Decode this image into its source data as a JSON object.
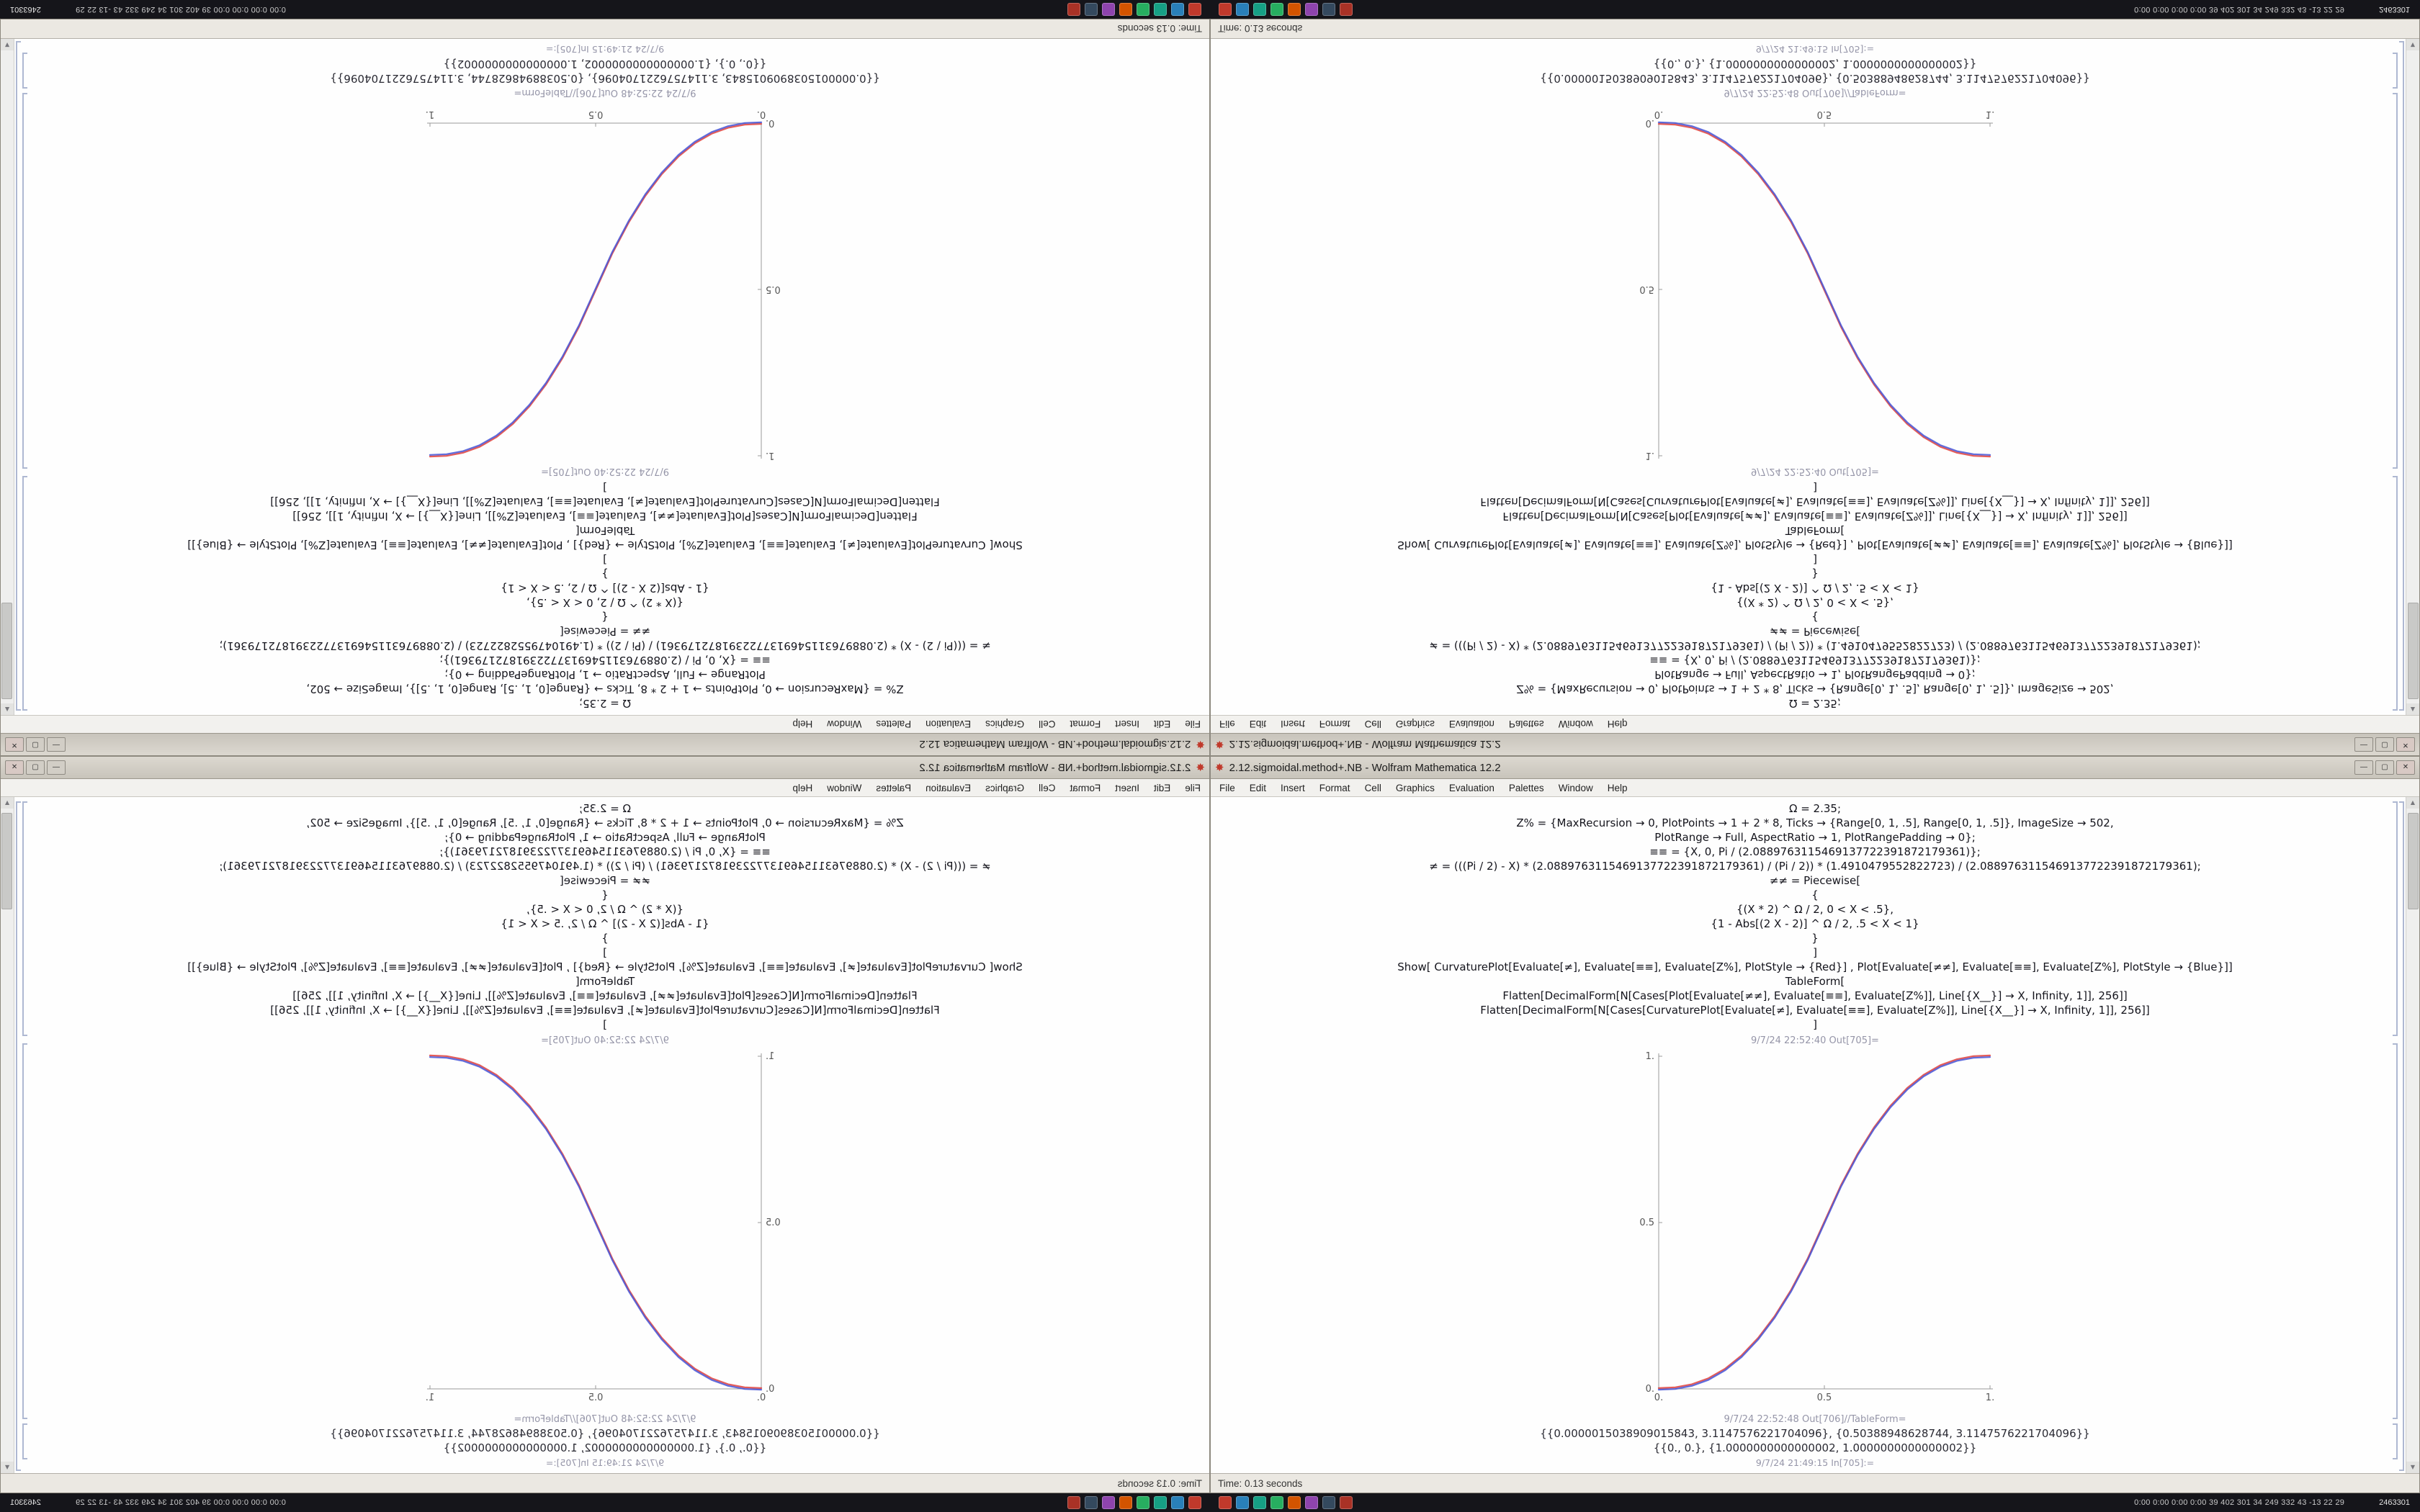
{
  "window": {
    "title": "2.12.sigmoidal.method+.NB - Wolfram Mathematica 12.2",
    "app_icon_glyph": "✸",
    "controls": {
      "minimize": "—",
      "maximize": "▢",
      "close": "✕"
    },
    "menu": [
      "File",
      "Edit",
      "Insert",
      "Format",
      "Cell",
      "Graphics",
      "Evaluation",
      "Palettes",
      "Window",
      "Help"
    ],
    "cells": {
      "code_lines": [
        "Ω = 2.35;",
        "Z% = {MaxRecursion → 0, PlotPoints → 1 + 2 * 8, Ticks → {Range[0, 1, .5], Range[0, 1, .5]}, ImageSize → 502,",
        "PlotRange → Full, AspectRatio → 1, PlotRangePadding → 0};",
        "≡≡ = {X, 0, Pi / (2.0889763115469137722391872179361)};",
        "≠ = (((Pi / 2) - X) * (2.0889763115469137722391872179361) / (Pi / 2)) * (1.4910479552822723) / (2.0889763115469137722391872179361);",
        "≠≠ = Piecewise[",
        "{",
        "{(X * 2) ^ Ω / 2, 0 < X < .5},",
        "{1 - Abs[(2 X - 2)] ^ Ω / 2, .5 < X < 1}",
        "}",
        "]",
        "Show[ CurvaturePlot[Evaluate[≠], Evaluate[≡≡], Evaluate[Z%], PlotStyle → {Red}] , Plot[Evaluate[≠≠], Evaluate[≡≡], Evaluate[Z%], PlotStyle → {Blue}]]",
        "TableForm[",
        "Flatten[DecimalForm[N[Cases[Plot[Evaluate[≠≠], Evaluate[≡≡], Evaluate[Z%]], Line[{X__}] → X, Infinity, 1]], 256]]",
        "Flatten[DecimalForm[N[Cases[CurvaturePlot[Evaluate[≠], Evaluate[≡≡], Evaluate[Z%]], Line[{X__}] → X, Infinity, 1]], 256]]",
        "]"
      ],
      "out1_label": "9/7/24 22:52:40 Out[705]=",
      "out2_label": "9/7/24 22:52:48 Out[706]//TableForm=",
      "table_rows": [
        "{{0.0000015038909015843, 3.1147576221704096}, {0.50388948628744, 3.1147576221704096}}",
        "{{0., 0.}, {1.0000000000000002, 1.0000000000000002}}"
      ],
      "next_in_label": "9/7/24 21:49:15 In[705]:="
    },
    "status_bar": {
      "left": "Time: 0.13 seconds"
    }
  },
  "taskbar": {
    "app_icons": [
      {
        "name": "taskbar-app-1",
        "color": "#c0392b"
      },
      {
        "name": "taskbar-app-2",
        "color": "#2980b9"
      },
      {
        "name": "taskbar-app-3",
        "color": "#16a085"
      },
      {
        "name": "taskbar-app-4",
        "color": "#27ae60"
      },
      {
        "name": "taskbar-app-5",
        "color": "#d35400"
      },
      {
        "name": "taskbar-app-6",
        "color": "#8e44ad"
      },
      {
        "name": "taskbar-app-7",
        "color": "#34495e"
      },
      {
        "name": "taskbar-app-8",
        "color": "#a93226"
      }
    ],
    "stats": "0:00 0:00 0:00 0:00 39 402 301 34 249 332 43 -13 22 29",
    "clock": "2463301"
  },
  "chart_data": {
    "type": "line",
    "title": "",
    "xlabel": "",
    "ylabel": "",
    "xlim": [
      0,
      1
    ],
    "ylim": [
      0,
      1
    ],
    "xticks": [
      0,
      0.5,
      1
    ],
    "yticks": [
      0,
      0.5,
      1
    ],
    "tick_labels": [
      "0.",
      "0.5",
      "1."
    ],
    "grid": false,
    "frame": false,
    "legend": "none",
    "image_size": 502,
    "x": [
      0,
      0.05,
      0.1,
      0.15,
      0.2,
      0.25,
      0.3,
      0.35,
      0.4,
      0.45,
      0.5,
      0.55,
      0.6,
      0.65,
      0.7,
      0.75,
      0.8,
      0.85,
      0.9,
      0.95,
      1
    ],
    "series": [
      {
        "name": "CurvaturePlot[≠] (Red)",
        "color": "#e0413c",
        "values": [
          0,
          0.0022,
          0.0114,
          0.0295,
          0.058,
          0.098,
          0.1506,
          0.2162,
          0.2959,
          0.3903,
          0.5,
          0.6097,
          0.7041,
          0.7838,
          0.8494,
          0.902,
          0.942,
          0.9705,
          0.9886,
          0.9978,
          1
        ]
      },
      {
        "name": "Plot[≠≠] (Blue)",
        "color": "#4553d6",
        "values": [
          0,
          0.0022,
          0.0114,
          0.0295,
          0.058,
          0.098,
          0.1506,
          0.2162,
          0.2959,
          0.3903,
          0.5,
          0.6097,
          0.7041,
          0.7838,
          0.8494,
          0.902,
          0.942,
          0.9705,
          0.9886,
          0.9978,
          1
        ]
      }
    ]
  }
}
